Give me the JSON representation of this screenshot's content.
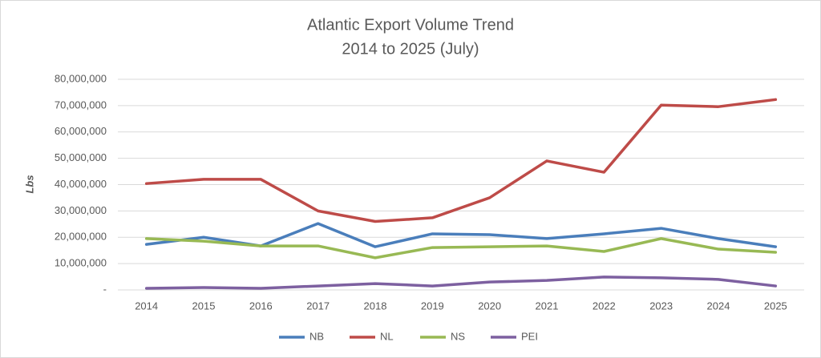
{
  "chart_data": {
    "type": "line",
    "title": "Atlantic Export Volume Trend",
    "subtitle": "2014 to 2025 (July)",
    "y_label": "Lbs",
    "categories": [
      "2014",
      "2015",
      "2016",
      "2017",
      "2018",
      "2019",
      "2020",
      "2021",
      "2022",
      "2023",
      "2024",
      "2025"
    ],
    "series": [
      {
        "name": "NB",
        "color": "#4a7ebb",
        "values": [
          17300000,
          20000000,
          16700000,
          25200000,
          16400000,
          21300000,
          21000000,
          19500000,
          21300000,
          23400000,
          19500000,
          16400000
        ]
      },
      {
        "name": "NL",
        "color": "#be4b48",
        "values": [
          40400000,
          42000000,
          42000000,
          30000000,
          26000000,
          27400000,
          35000000,
          49000000,
          44700000,
          70200000,
          69600000,
          72300000
        ]
      },
      {
        "name": "NS",
        "color": "#98b954",
        "values": [
          19500000,
          18500000,
          16700000,
          16700000,
          12200000,
          16100000,
          16400000,
          16700000,
          14600000,
          19500000,
          15500000,
          14300000
        ]
      },
      {
        "name": "PEI",
        "color": "#7d60a0",
        "values": [
          600000,
          900000,
          600000,
          1500000,
          2400000,
          1500000,
          3000000,
          3600000,
          4900000,
          4600000,
          4000000,
          1500000
        ]
      }
    ],
    "ylim": [
      0,
      80000000
    ],
    "yticks": [
      {
        "value": 0,
        "label": "-"
      },
      {
        "value": 10000000,
        "label": "10,000,000"
      },
      {
        "value": 20000000,
        "label": "20,000,000"
      },
      {
        "value": 30000000,
        "label": "30,000,000"
      },
      {
        "value": 40000000,
        "label": "40,000,000"
      },
      {
        "value": 50000000,
        "label": "50,000,000"
      },
      {
        "value": 60000000,
        "label": "60,000,000"
      },
      {
        "value": 70000000,
        "label": "70,000,000"
      },
      {
        "value": 80000000,
        "label": "80,000,000"
      }
    ],
    "grid": true,
    "legend": "bottom"
  }
}
